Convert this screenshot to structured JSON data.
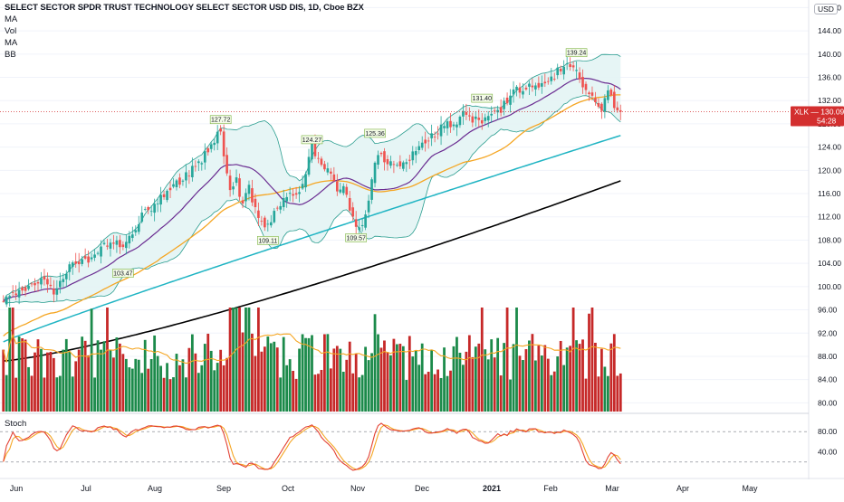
{
  "header": {
    "title": "SELECT SECTOR SPDR TRUST TECHNOLOGY SELECT SECTOR USD DIS, 1D, Cboe BZX",
    "indicators": [
      "MA",
      "Vol",
      "MA",
      "BB"
    ],
    "currency": "USD"
  },
  "stoch_label": "Stoch",
  "colors": {
    "up": "#26a69a",
    "down": "#ef5350",
    "vol_up": "#1b8a4a",
    "vol_down": "#c62828",
    "ma_purple": "#6a2c91",
    "ma_orange": "#f5a623",
    "ma_teal": "#1fb4c3",
    "ma_black": "#000000",
    "bb_fill": "#e3f4f4",
    "bb_line": "#2a9d8f",
    "stoch_k": "#e34234",
    "stoch_d": "#f5a623",
    "last_price": "#d32f2f"
  },
  "chart_data": {
    "type": "candlestick",
    "symbol": "XLK",
    "last_price": "130.09",
    "countdown": "54:28",
    "price_axis": {
      "ticks": [
        80,
        84,
        88,
        92,
        96,
        100,
        104,
        108,
        112,
        116,
        120,
        124,
        128,
        132,
        136,
        140,
        144,
        148
      ],
      "range": [
        78.5,
        149
      ]
    },
    "time_axis": {
      "labels": [
        "Jun",
        "Jul",
        "Aug",
        "Sep",
        "Oct",
        "Nov",
        "Dec",
        "2021",
        "Feb",
        "Mar",
        "Apr",
        "May"
      ]
    },
    "annotations": [
      {
        "label": "103.47",
        "type": "low"
      },
      {
        "label": "127.72",
        "type": "high"
      },
      {
        "label": "109.11",
        "type": "low"
      },
      {
        "label": "124.27",
        "type": "high"
      },
      {
        "label": "125.36",
        "type": "high"
      },
      {
        "label": "109.57",
        "type": "low"
      },
      {
        "label": "131.40",
        "type": "high"
      },
      {
        "label": "139.24",
        "type": "high"
      }
    ],
    "close_anchors": [
      [
        0,
        97.5
      ],
      [
        8,
        99.5
      ],
      [
        12,
        101
      ],
      [
        16,
        99
      ],
      [
        20,
        103
      ],
      [
        24,
        104
      ],
      [
        28,
        104.5
      ],
      [
        30,
        106.5
      ],
      [
        34,
        107.5
      ],
      [
        38,
        107
      ],
      [
        42,
        110
      ],
      [
        44,
        112.5
      ],
      [
        48,
        114
      ],
      [
        52,
        116
      ],
      [
        56,
        118
      ],
      [
        60,
        120
      ],
      [
        64,
        122.5
      ],
      [
        68,
        126.5
      ],
      [
        69,
        126
      ],
      [
        72,
        116
      ],
      [
        74,
        118
      ],
      [
        76,
        114
      ],
      [
        78,
        117
      ],
      [
        80,
        113
      ],
      [
        82,
        111
      ],
      [
        84,
        110.5
      ],
      [
        86,
        113
      ],
      [
        90,
        116
      ],
      [
        94,
        116.5
      ],
      [
        96,
        120
      ],
      [
        98,
        124
      ],
      [
        100,
        122
      ],
      [
        102,
        120.5
      ],
      [
        104,
        119
      ],
      [
        106,
        117
      ],
      [
        108,
        116.5
      ],
      [
        110,
        113.5
      ],
      [
        112,
        111
      ],
      [
        114,
        111
      ],
      [
        116,
        115
      ],
      [
        118,
        121.5
      ],
      [
        120,
        122.5
      ],
      [
        124,
        121
      ],
      [
        128,
        121.5
      ],
      [
        132,
        124.5
      ],
      [
        136,
        126
      ],
      [
        140,
        127.5
      ],
      [
        142,
        128
      ],
      [
        144,
        128.5
      ],
      [
        146,
        130
      ],
      [
        148,
        129
      ],
      [
        150,
        128.5
      ],
      [
        152,
        128
      ],
      [
        154,
        129
      ],
      [
        158,
        130.5
      ],
      [
        162,
        134
      ],
      [
        166,
        134
      ],
      [
        170,
        135
      ],
      [
        174,
        136
      ],
      [
        178,
        138
      ],
      [
        181,
        138
      ],
      [
        184,
        135
      ],
      [
        186,
        133
      ],
      [
        188,
        132
      ],
      [
        190,
        131
      ],
      [
        192,
        134
      ],
      [
        194,
        131
      ],
      [
        196,
        130.09
      ]
    ],
    "moving_averages": [
      {
        "name": "MA",
        "period": 20,
        "color": "#6a2c91"
      },
      {
        "name": "MA",
        "period": 50,
        "color": "#f5a623"
      },
      {
        "name": "MA",
        "period": 100,
        "color": "#1fb4c3"
      },
      {
        "name": "MA",
        "period": 200,
        "color": "#000000"
      }
    ],
    "volume": {
      "scale_note": "relative"
    },
    "stoch": {
      "levels": [
        20,
        80
      ],
      "tick_labels": [
        "80.00",
        "40.00"
      ]
    }
  }
}
